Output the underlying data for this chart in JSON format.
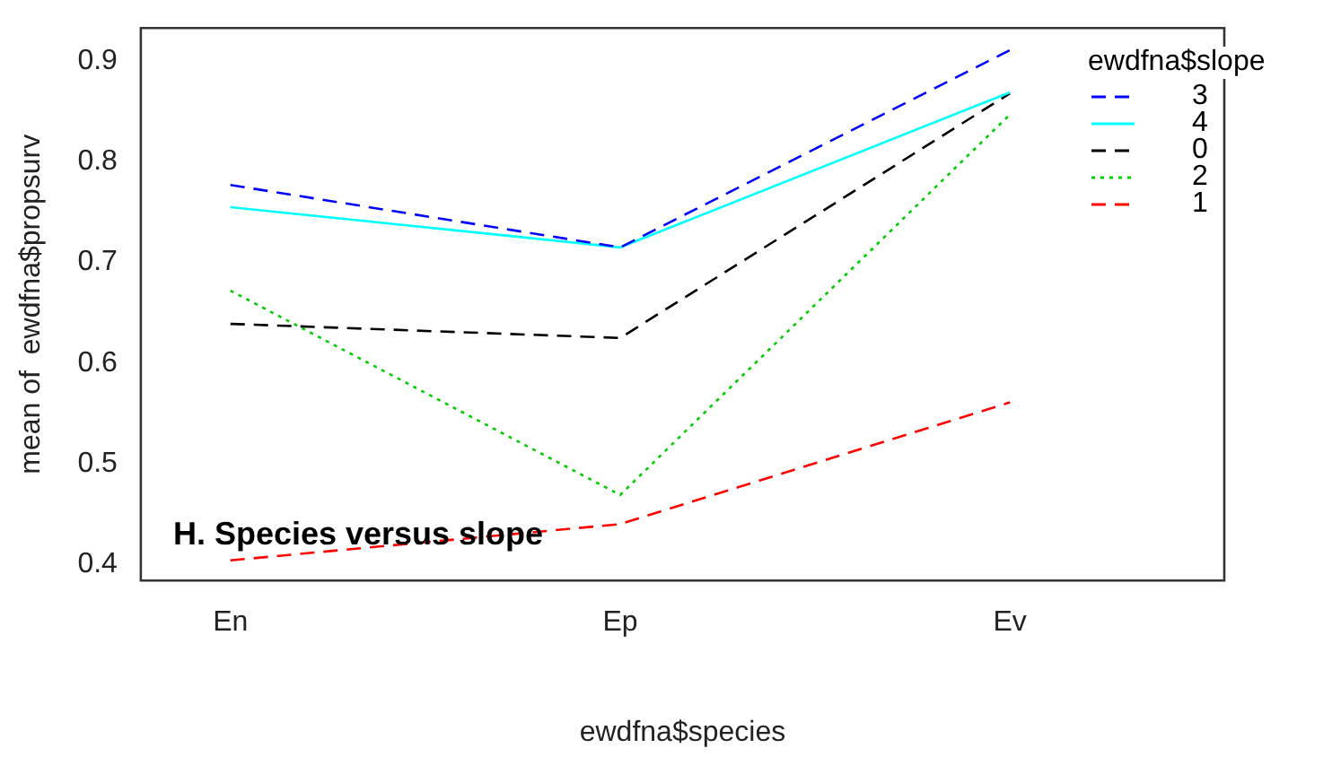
{
  "chart_data": {
    "type": "line",
    "title": null,
    "xlabel": "ewdfna$species",
    "ylabel": "mean of  ewdfna$propsurv",
    "legend_title": "ewdfna$slope",
    "categories": [
      "En",
      "Ep",
      "Ev"
    ],
    "series": [
      {
        "name": "3",
        "color": "#0000ff",
        "line_style": "dashed",
        "values": [
          0.777,
          0.715,
          0.911
        ]
      },
      {
        "name": "4",
        "color": "#00ffff",
        "line_style": "solid",
        "values": [
          0.755,
          0.715,
          0.869
        ]
      },
      {
        "name": "0",
        "color": "#000000",
        "line_style": "dashed",
        "values": [
          0.639,
          0.625,
          0.868
        ]
      },
      {
        "name": "2",
        "color": "#00cd00",
        "line_style": "dotted",
        "values": [
          0.672,
          0.469,
          0.847
        ]
      },
      {
        "name": "1",
        "color": "#ff0000",
        "line_style": "dashed",
        "values": [
          0.404,
          0.44,
          0.561
        ]
      }
    ],
    "ylim": [
      0.384,
      0.933
    ],
    "yticks": [
      0.4,
      0.5,
      0.6,
      0.7,
      0.8,
      0.9
    ],
    "grid": false,
    "legend": "top right",
    "marker": "none",
    "annotations": [
      "H. Species versus slope"
    ]
  }
}
